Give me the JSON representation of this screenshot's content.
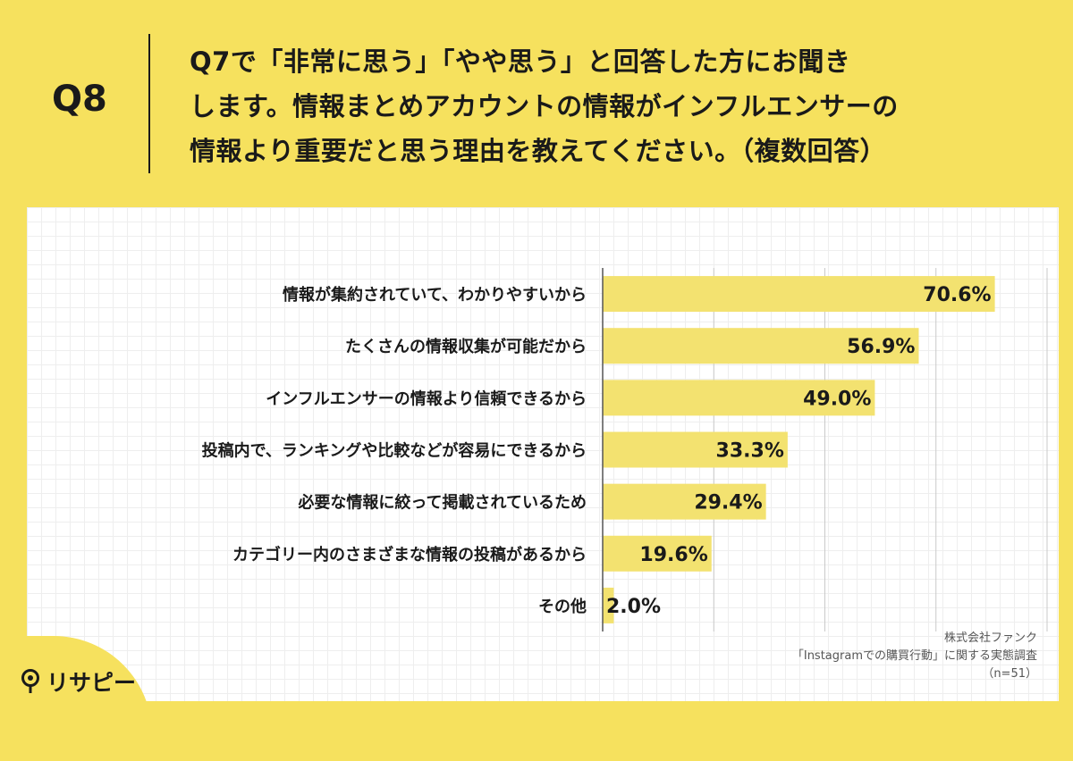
{
  "header": {
    "q_number": "Q8",
    "question": "Q7で「非常に思う」「やや思う」と回答した方にお聞き\nします。情報まとめアカウントの情報がインフルエンサーの\n情報より重要だと思う理由を教えてください。（複数回答）"
  },
  "colors": {
    "background": "#f6e15e",
    "bar": "#f3e270",
    "panel": "#ffffff",
    "text": "#1a1a1a"
  },
  "chart_data": {
    "type": "bar",
    "orientation": "horizontal",
    "categories": [
      "情報が集約されていて、わかりやすいから",
      "たくさんの情報収集が可能だから",
      "インフルエンサーの情報より信頼できるから",
      "投稿内で、ランキングや比較などが容易にできるから",
      "必要な情報に絞って掲載されているため",
      "カテゴリー内のさまざまな情報の投稿があるから",
      "その他"
    ],
    "values": [
      70.6,
      56.9,
      49.0,
      33.3,
      29.4,
      19.6,
      2.0
    ],
    "value_labels": [
      "70.6%",
      "56.9%",
      "49.0%",
      "33.3%",
      "29.4%",
      "19.6%",
      "2.0%"
    ],
    "xlim": [
      0,
      80
    ],
    "grid": true,
    "title": "",
    "xlabel": "",
    "ylabel": ""
  },
  "source": {
    "company": "株式会社ファンク",
    "survey": "「Instagramでの購買行動」に関する実態調査",
    "sample": "（n=51）"
  },
  "logo": {
    "text": "リサピー",
    "icon": "pin-logo-icon"
  }
}
